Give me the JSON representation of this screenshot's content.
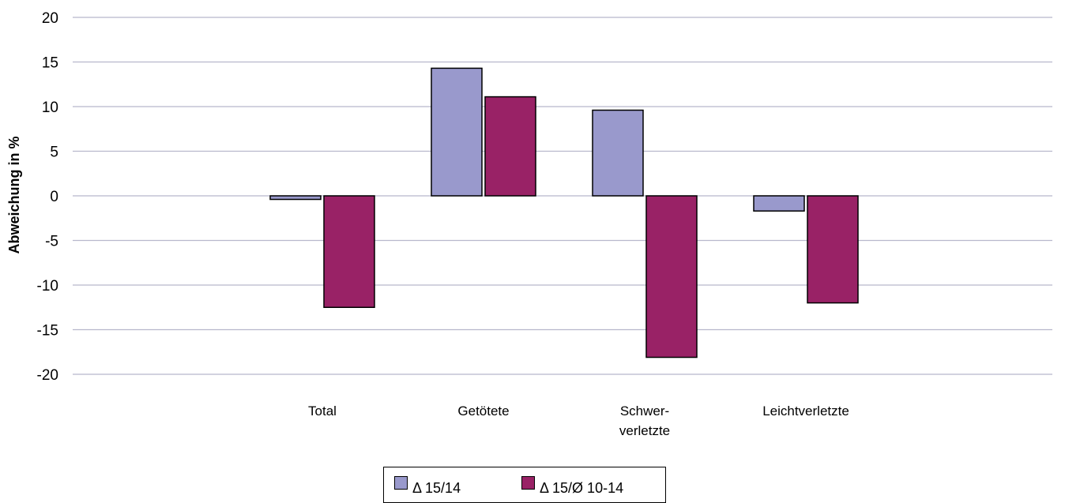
{
  "chart_data": {
    "type": "bar",
    "title": "",
    "xlabel": "",
    "ylabel": "Abweichung in %",
    "ylim": [
      -20,
      20
    ],
    "yticks": [
      20,
      15,
      10,
      5,
      0,
      -5,
      -10,
      -15,
      -20
    ],
    "grid": true,
    "legend_position": "bottom-center",
    "categories": [
      {
        "lines": [
          "Total"
        ]
      },
      {
        "lines": [
          "Getötete"
        ]
      },
      {
        "lines": [
          "Schwer-",
          "verletzte"
        ]
      },
      {
        "lines": [
          "Leichtverletzte"
        ]
      }
    ],
    "series": [
      {
        "name": "Δ 15/14",
        "color": "#9999cc",
        "values": [
          -0.4,
          14.3,
          9.6,
          -1.7
        ]
      },
      {
        "name": "Δ 15/Ø 10-14",
        "color": "#992266",
        "values": [
          -12.5,
          11.1,
          -18.1,
          -12.0
        ]
      }
    ]
  }
}
